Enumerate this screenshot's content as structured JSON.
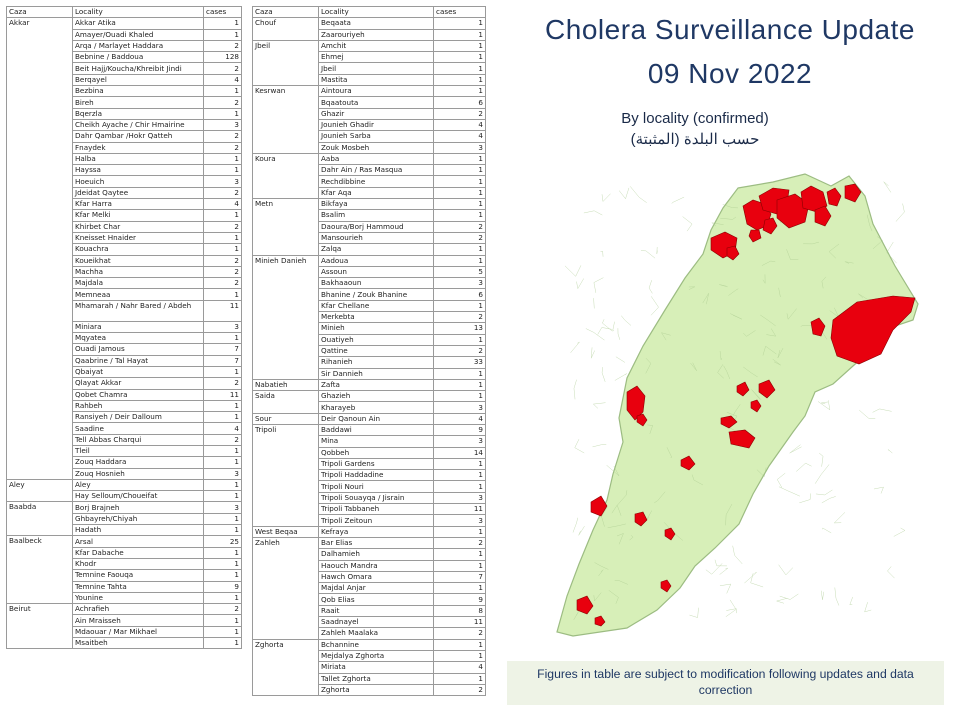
{
  "title_line1": "Cholera Surveillance Update",
  "title_line2": "09 Nov 2022",
  "subtitle_en": "By locality (confirmed)",
  "subtitle_ar": "حسب البلدة (المثبتة)",
  "note": "Figures in table are subject to modification following updates and data correction",
  "colors": {
    "title": "#1f3864",
    "map_fill": "#d7efb8",
    "map_border": "#9cbc82",
    "case_fill": "#e8000e",
    "note_bg": "#eef3e6"
  },
  "tables": [
    {
      "headers": [
        "Caza",
        "Locality",
        "cases"
      ],
      "groups": [
        {
          "caza": "Akkar",
          "rows": [
            [
              "Akkar Atika",
              "1"
            ],
            [
              "Amayer/Ouadi  Khaled",
              "1"
            ],
            [
              "Arqa / Marlayet  Haddara",
              "2"
            ],
            [
              "Bebnine / Baddoua",
              "128"
            ],
            [
              "Beit Hajj/Koucha/Khreibit  Jindi",
              "2"
            ],
            [
              "Berqayel",
              "4"
            ],
            [
              "Bezbina",
              "1"
            ],
            [
              "Bireh",
              "2"
            ],
            [
              "Bqerzla",
              "1"
            ],
            [
              "Cheikh Ayache / Chir Hmairine",
              "3"
            ],
            [
              "Dahr Qambar  /Hokr Qatteh",
              "2"
            ],
            [
              "Fnaydek",
              "2"
            ],
            [
              "Halba",
              "1"
            ],
            [
              "Hayssa",
              "1"
            ],
            [
              "Hoeuich",
              "3"
            ],
            [
              "Jdeidat Qaytee",
              "2"
            ],
            [
              "Kfar Harra",
              "4"
            ],
            [
              "Kfar Melki",
              "1"
            ],
            [
              "Khirbet Char",
              "2"
            ],
            [
              "Kneisset Hnaider",
              "1"
            ],
            [
              "Kouachra",
              "1"
            ],
            [
              "Koueikhat",
              "2"
            ],
            [
              "Machha",
              "2"
            ],
            [
              "Majdala",
              "2"
            ],
            [
              "Memneaa",
              "1"
            ],
            [
              "Mhamarah  / Nahr Bared / Abdeh",
              "11",
              "tall"
            ],
            [
              "Miniara",
              "3"
            ],
            [
              "Mqyatea",
              "1"
            ],
            [
              "Ouadi Jamous",
              "7"
            ],
            [
              "Qaabrine / Tal Hayat",
              "7"
            ],
            [
              "Qbaiyat",
              "1"
            ],
            [
              "Qlayat Akkar",
              "2"
            ],
            [
              "Qobet Chamra",
              "11"
            ],
            [
              "Rahbeh",
              "1"
            ],
            [
              "Ransiyeh  / Deir Dalloum",
              "1"
            ],
            [
              "Saadine",
              "4"
            ],
            [
              "Tell  Abbas Charqui",
              "2"
            ],
            [
              "Tleil",
              "1"
            ],
            [
              "Zouq Haddara",
              "1"
            ],
            [
              "Zouq Hosnieh",
              "3"
            ]
          ]
        },
        {
          "caza": "Aley",
          "rows": [
            [
              "Aley",
              "1"
            ],
            [
              "Hay Selloum/Choueifat",
              "1"
            ]
          ]
        },
        {
          "caza": "Baabda",
          "rows": [
            [
              "Borj Brajneh",
              "3"
            ],
            [
              "Ghbayreh/Chiyah",
              "1"
            ],
            [
              "Hadath",
              "1"
            ]
          ]
        },
        {
          "caza": "Baalbeck",
          "rows": [
            [
              "Arsal",
              "25"
            ],
            [
              "Kfar Dabache",
              "1"
            ],
            [
              "Khodr",
              "1"
            ],
            [
              "Temnine Faouqa",
              "1"
            ],
            [
              "Temnine Tahta",
              "9"
            ],
            [
              "Younine",
              "1"
            ]
          ]
        },
        {
          "caza": "Beirut",
          "rows": [
            [
              "Achrafieh",
              "2"
            ],
            [
              "Ain Mraisseh",
              "1"
            ],
            [
              "Mdaouar / Mar Mikhael",
              "1"
            ],
            [
              "Msaitbeh",
              "1"
            ]
          ]
        }
      ]
    },
    {
      "headers": [
        "Caza",
        "Locality",
        "cases"
      ],
      "groups": [
        {
          "caza": "Chouf",
          "rows": [
            [
              "Beqaata",
              "1"
            ],
            [
              "Zaarouriyeh",
              "1"
            ]
          ]
        },
        {
          "caza": "Jbeil",
          "rows": [
            [
              "Amchit",
              "1"
            ],
            [
              "Ehmej",
              "1"
            ],
            [
              "Jbeil",
              "1"
            ],
            [
              "Mastita",
              "1"
            ]
          ]
        },
        {
          "caza": "Kesrwan",
          "rows": [
            [
              "Aintoura",
              "1"
            ],
            [
              "Bqaatouta",
              "6"
            ],
            [
              "Ghazir",
              "2"
            ],
            [
              "Jounieh Ghadir",
              "4"
            ],
            [
              "Jounieh Sarba",
              "4"
            ],
            [
              "Zouk Mosbeh",
              "3"
            ]
          ]
        },
        {
          "caza": "Koura",
          "rows": [
            [
              "Aaba",
              "1"
            ],
            [
              "Dahr Ain / Ras Masqua",
              "1"
            ],
            [
              "Rechdibbine",
              "1"
            ],
            [
              "Kfar Aqa",
              "1"
            ]
          ]
        },
        {
          "caza": "Metn",
          "rows": [
            [
              "Bikfaya",
              "1"
            ],
            [
              "Bsalim",
              "1"
            ],
            [
              "Daoura/Borj  Hammoud",
              "2"
            ],
            [
              "Mansourieh",
              "2"
            ],
            [
              "Zalqa",
              "1"
            ]
          ]
        },
        {
          "caza": "Minieh Danieh",
          "rows": [
            [
              "Aadoua",
              "1"
            ],
            [
              "Assoun",
              "5"
            ],
            [
              "Bakhaaoun",
              "3"
            ],
            [
              "Bhanine / Zouk Bhanine",
              "6"
            ],
            [
              "Kfar Chellane",
              "1"
            ],
            [
              "Merkebta",
              "2"
            ],
            [
              "Minieh",
              "13"
            ],
            [
              "Ouatiyeh",
              "1"
            ],
            [
              "Qattine",
              "2"
            ],
            [
              "Rihanieh",
              "33"
            ],
            [
              "Sir Dannieh",
              "1"
            ]
          ]
        },
        {
          "caza": "Nabatieh",
          "rows": [
            [
              "Zafta",
              "1"
            ]
          ]
        },
        {
          "caza": "Saida",
          "rows": [
            [
              "Ghazieh",
              "1"
            ],
            [
              "Kharayeb",
              "3"
            ]
          ]
        },
        {
          "caza": "Sour",
          "rows": [
            [
              "Deir Qanoun Ain",
              "4"
            ]
          ]
        },
        {
          "caza": "Tripoli",
          "rows": [
            [
              "Baddawi",
              "9"
            ],
            [
              "Mina",
              "3"
            ],
            [
              "Qobbeh",
              "14"
            ],
            [
              "Tripoli Gardens",
              "1"
            ],
            [
              "Tripoli Haddadine",
              "1"
            ],
            [
              "Tripoli Nouri",
              "1"
            ],
            [
              "Tripoli Souayqa  / Jisrain",
              "3"
            ],
            [
              "Tripoli Tabbaneh",
              "11"
            ],
            [
              "Tripoli Zeitoun",
              "3"
            ]
          ]
        },
        {
          "caza": "West Beqaa",
          "rows": [
            [
              "Kefraya",
              "1"
            ]
          ]
        },
        {
          "caza": "Zahleh",
          "rows": [
            [
              "Bar Elias",
              "2"
            ],
            [
              "Dalhamieh",
              "1"
            ],
            [
              "Haouch Mandra",
              "1"
            ],
            [
              "Hawch Omara",
              "7"
            ],
            [
              "Majdal Anjar",
              "1"
            ],
            [
              "Qob Elias",
              "9"
            ],
            [
              "Raait",
              "8"
            ],
            [
              "Saadnayel",
              "11"
            ],
            [
              "Zahleh Maalaka",
              "2"
            ]
          ]
        },
        {
          "caza": "Zghorta",
          "rows": [
            [
              "Bchannine",
              "1"
            ],
            [
              "Mejdalya Zghorta",
              "1"
            ],
            [
              "Miriata",
              "4"
            ],
            [
              "Tallet Zghorta",
              "1"
            ],
            [
              "Zghorta",
              "2"
            ]
          ]
        }
      ]
    }
  ]
}
